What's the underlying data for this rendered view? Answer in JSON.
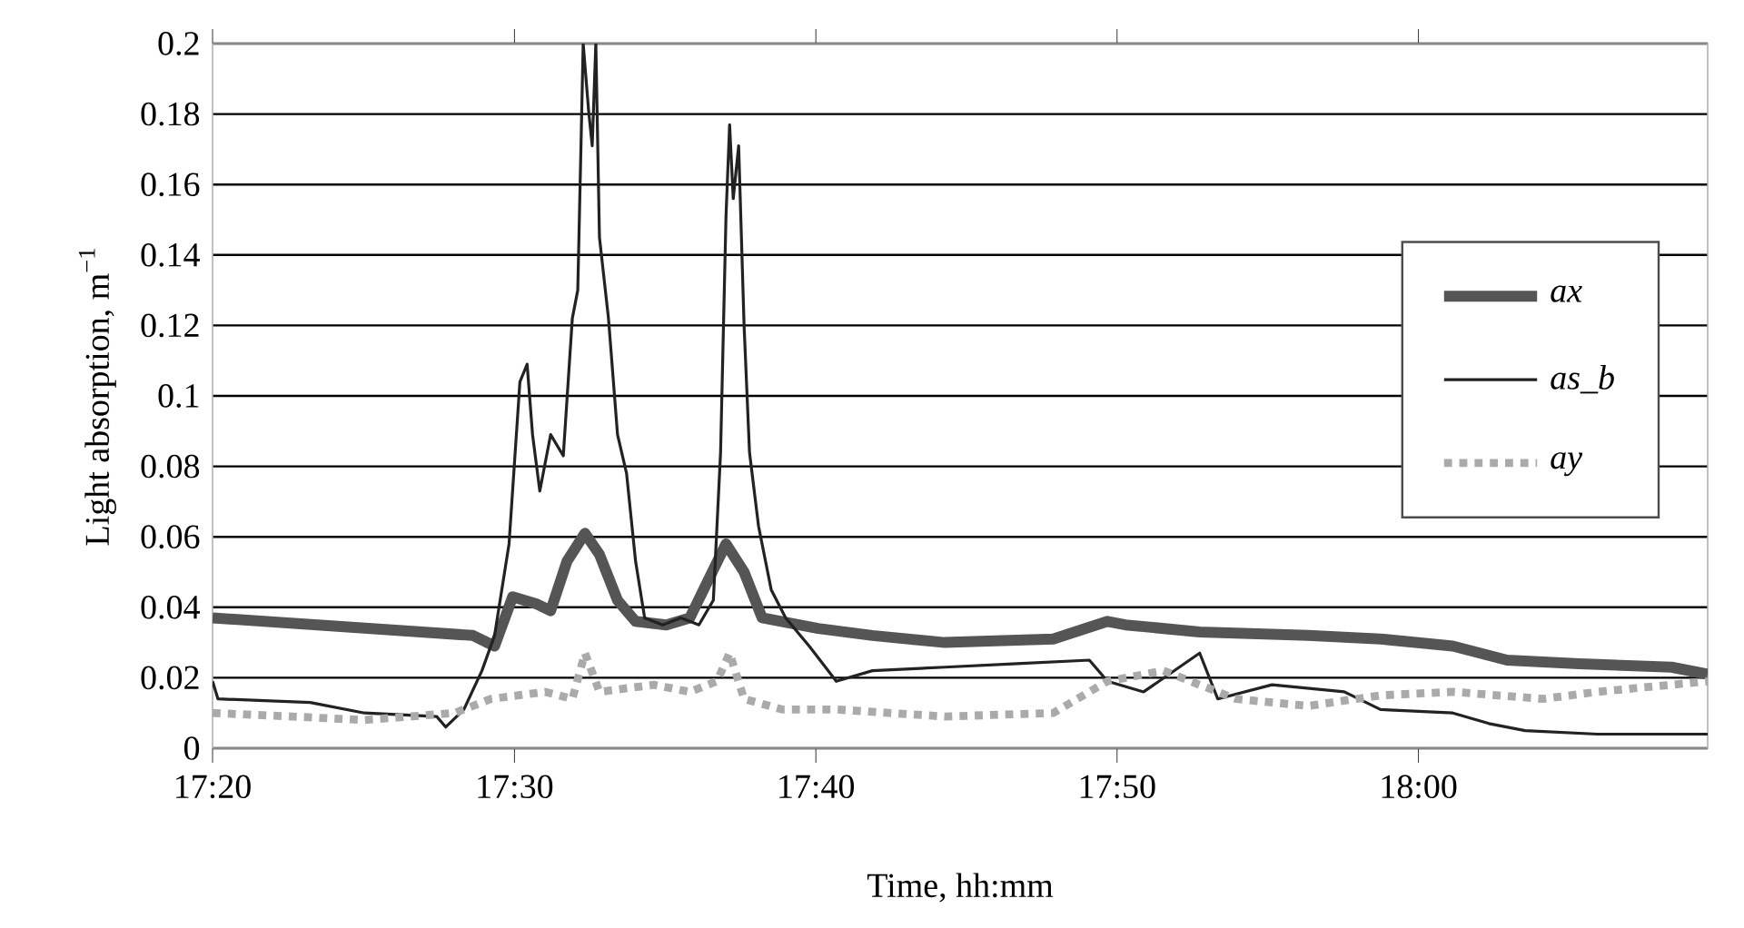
{
  "chart_data": {
    "type": "line",
    "xlabel": "Time, hh:mm",
    "ylabel": "Light absorption, m$^{−1}$",
    "xlim": [
      17.333,
      18.16
    ],
    "ylim": [
      0,
      0.2
    ],
    "xticks": [
      {
        "value": 17.333,
        "label": "17:20"
      },
      {
        "value": 17.5,
        "label": "17:30"
      },
      {
        "value": 17.6667,
        "label": "17:40"
      },
      {
        "value": 17.8333,
        "label": "17:50"
      },
      {
        "value": 18.0,
        "label": "18:00"
      }
    ],
    "yticks": [
      0,
      0.02,
      0.04,
      0.06,
      0.08,
      0.1,
      0.12,
      0.14,
      0.16,
      0.18,
      0.2
    ],
    "grid": "y",
    "legend": "right",
    "marker": "none",
    "series": [
      {
        "name": "ax",
        "color": "#555555",
        "line_style": "solid",
        "x": [
          17.333,
          17.477,
          17.489,
          17.499,
          17.512,
          17.52,
          17.529,
          17.539,
          17.547,
          17.557,
          17.567,
          17.584,
          17.597,
          17.617,
          17.627,
          17.637,
          17.668,
          17.698,
          17.738,
          17.798,
          17.828,
          17.838,
          17.879,
          17.939,
          17.979,
          18.019,
          18.049,
          18.089,
          18.14,
          18.16
        ],
        "values": [
          0.037,
          0.032,
          0.029,
          0.043,
          0.041,
          0.039,
          0.053,
          0.061,
          0.055,
          0.042,
          0.036,
          0.035,
          0.037,
          0.058,
          0.05,
          0.037,
          0.034,
          0.032,
          0.03,
          0.031,
          0.036,
          0.035,
          0.033,
          0.032,
          0.031,
          0.029,
          0.025,
          0.024,
          0.023,
          0.021
        ]
      },
      {
        "name": "as_b",
        "color": "#222222",
        "line_style": "solid",
        "x": [
          17.333,
          17.336,
          17.387,
          17.417,
          17.457,
          17.462,
          17.472,
          17.482,
          17.489,
          17.497,
          17.503,
          17.507,
          17.51,
          17.514,
          17.52,
          17.527,
          17.532,
          17.535,
          17.537,
          17.538,
          17.541,
          17.543,
          17.545,
          17.547,
          17.552,
          17.557,
          17.562,
          17.567,
          17.572,
          17.582,
          17.592,
          17.602,
          17.61,
          17.614,
          17.617,
          17.619,
          17.621,
          17.624,
          17.627,
          17.63,
          17.635,
          17.642,
          17.65,
          17.663,
          17.678,
          17.698,
          17.738,
          17.778,
          17.818,
          17.828,
          17.848,
          17.879,
          17.889,
          17.919,
          17.959,
          17.979,
          18.019,
          18.039,
          18.059,
          18.099,
          18.14,
          18.16
        ],
        "values": [
          0.019,
          0.014,
          0.013,
          0.01,
          0.009,
          0.006,
          0.011,
          0.022,
          0.032,
          0.058,
          0.104,
          0.109,
          0.089,
          0.073,
          0.089,
          0.083,
          0.122,
          0.13,
          0.176,
          0.2,
          0.181,
          0.171,
          0.2,
          0.145,
          0.122,
          0.089,
          0.078,
          0.053,
          0.037,
          0.035,
          0.037,
          0.035,
          0.042,
          0.084,
          0.151,
          0.177,
          0.156,
          0.171,
          0.12,
          0.084,
          0.063,
          0.045,
          0.037,
          0.029,
          0.019,
          0.022,
          0.023,
          0.024,
          0.025,
          0.019,
          0.016,
          0.027,
          0.014,
          0.018,
          0.016,
          0.011,
          0.01,
          0.007,
          0.005,
          0.004,
          0.004,
          0.004
        ]
      },
      {
        "name": "ay",
        "color": "#aaaaaa",
        "line_style": "dotted",
        "x": [
          17.333,
          17.377,
          17.417,
          17.467,
          17.487,
          17.517,
          17.532,
          17.539,
          17.547,
          17.577,
          17.597,
          17.612,
          17.619,
          17.627,
          17.648,
          17.678,
          17.738,
          17.798,
          17.828,
          17.859,
          17.899,
          17.939,
          17.979,
          18.019,
          18.069,
          18.099,
          18.16
        ],
        "values": [
          0.01,
          0.009,
          0.008,
          0.01,
          0.014,
          0.016,
          0.014,
          0.027,
          0.016,
          0.018,
          0.016,
          0.019,
          0.027,
          0.014,
          0.011,
          0.011,
          0.009,
          0.01,
          0.019,
          0.022,
          0.014,
          0.012,
          0.015,
          0.016,
          0.014,
          0.016,
          0.019
        ]
      }
    ]
  }
}
